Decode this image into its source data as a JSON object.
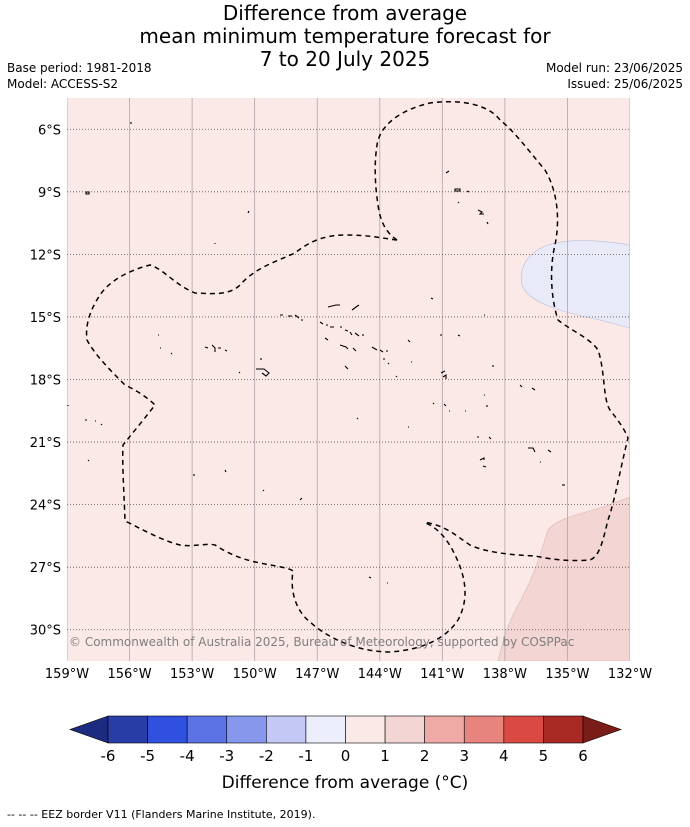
{
  "title": {
    "line1": "Difference from average",
    "line2": "mean minimum temperature forecast for",
    "line3": "7 to 20 July 2025"
  },
  "meta": {
    "base_period": "Base period: 1981-2018",
    "model": "Model: ACCESS-S2",
    "model_run": "Model run: 23/06/2025",
    "issued": "Issued: 25/06/2025"
  },
  "map": {
    "copyright": "© Commonwealth of Australia 2025, Bureau of Meteorology, supported by COSPPac",
    "lon_range": [
      -159,
      -132
    ],
    "lat_range": [
      -31.5,
      -4.5
    ],
    "lon_ticks": [
      {
        "value": -159,
        "label": "159°W"
      },
      {
        "value": -156,
        "label": "156°W"
      },
      {
        "value": -153,
        "label": "153°W"
      },
      {
        "value": -150,
        "label": "150°W"
      },
      {
        "value": -147,
        "label": "147°W"
      },
      {
        "value": -144,
        "label": "144°W"
      },
      {
        "value": -141,
        "label": "141°W"
      },
      {
        "value": -138,
        "label": "138°W"
      },
      {
        "value": -135,
        "label": "135°W"
      },
      {
        "value": -132,
        "label": "132°W"
      }
    ],
    "lat_ticks": [
      {
        "value": -6,
        "label": "6°S"
      },
      {
        "value": -9,
        "label": "9°S"
      },
      {
        "value": -12,
        "label": "12°S"
      },
      {
        "value": -15,
        "label": "15°S"
      },
      {
        "value": -18,
        "label": "18°S"
      },
      {
        "value": -21,
        "label": "21°S"
      },
      {
        "value": -24,
        "label": "24°S"
      },
      {
        "value": -27,
        "label": "27°S"
      },
      {
        "value": -30,
        "label": "30°S"
      }
    ],
    "background_color": "#fbe9e7",
    "regions": [
      {
        "name": "cooler area",
        "color": "#e8eaf8"
      },
      {
        "name": "warmer area",
        "color": "#f3d5d3"
      }
    ]
  },
  "colorbar": {
    "title": "Difference from average (°C)",
    "ticks": [
      "-6",
      "-5",
      "-4",
      "-3",
      "-2",
      "-1",
      "0",
      "1",
      "2",
      "3",
      "4",
      "5",
      "6"
    ],
    "colors": [
      "#1c2a80",
      "#283ea6",
      "#3050e0",
      "#5b73e4",
      "#8797ec",
      "#c3c8f5",
      "#eceefb",
      "#fbe9e7",
      "#f3d5d3",
      "#efaaa6",
      "#e8847e",
      "#db4a42",
      "#a92a24",
      "#7a1c18"
    ]
  },
  "footer": "-- -- -- EEZ border V11 (Flanders Marine Institute, 2019)."
}
